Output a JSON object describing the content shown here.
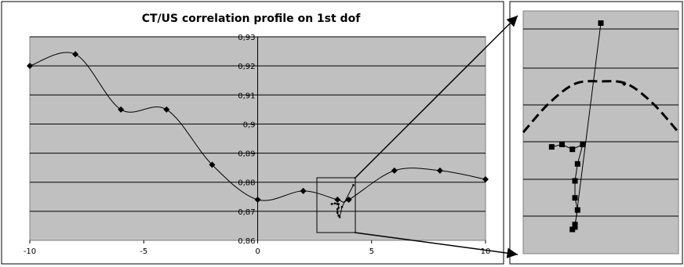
{
  "chart_data": [
    {
      "type": "line",
      "title": "CT/US correlation profile on 1st dof",
      "xlabel": "",
      "ylabel": "",
      "xlim": [
        -10,
        10
      ],
      "ylim": [
        0.86,
        0.93
      ],
      "x_ticks": [
        "-10",
        "-5",
        "0",
        "5",
        "10"
      ],
      "y_ticks": [
        "0,86",
        "0,87",
        "0,88",
        "0,89",
        "0,9",
        "0,91",
        "0,92",
        "0,93"
      ],
      "grid": true,
      "legend": "none",
      "plot_background": "#c0c0c0",
      "series": [
        {
          "x": [
            -10,
            -8,
            -6,
            -4,
            -2,
            0,
            2,
            3.5,
            4,
            6,
            8,
            10
          ],
          "y": [
            0.92,
            0.924,
            0.905,
            0.905,
            0.886,
            0.874,
            0.877,
            0.874,
            0.874,
            0.884,
            0.884,
            0.881
          ]
        },
        {
          "x": [
            3.25,
            3.4,
            3.5,
            3.55,
            3.55,
            3.5,
            3.5,
            3.55,
            3.6,
            3.7,
            4.2
          ],
          "y": [
            0.8725,
            0.8727,
            0.8725,
            0.8725,
            0.8712,
            0.8707,
            0.8695,
            0.8685,
            0.868,
            0.8715,
            0.879
          ]
        }
      ]
    },
    {
      "type": "line",
      "title": "",
      "plot_background": "#c0c0c0",
      "grid": true,
      "legend": "none",
      "series": [
        {
          "style": "dashed",
          "x": [
            0,
            1,
            2,
            3,
            4,
            5,
            6
          ],
          "y": [
            0.5,
            0.38,
            0.3,
            0.29,
            0.3,
            0.38,
            0.5
          ]
        },
        {
          "style": "solid-square-markers",
          "x": [
            1.1,
            1.5,
            1.9,
            2.3,
            2.1,
            2.0,
            2.0,
            2.1,
            2.0,
            1.9,
            2.0,
            3.0
          ],
          "y": [
            0.56,
            0.55,
            0.57,
            0.55,
            0.63,
            0.7,
            0.77,
            0.82,
            0.88,
            0.9,
            0.89,
            0.05
          ]
        }
      ]
    }
  ]
}
